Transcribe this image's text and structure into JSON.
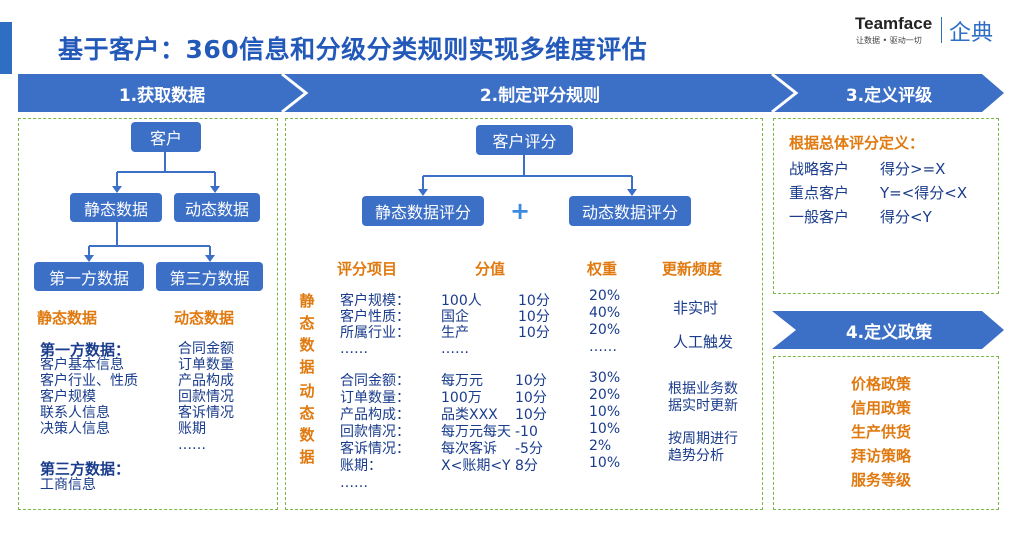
{
  "title": "基于客户：360信息和分级分类规则实现多维度评估",
  "logo": {
    "name": "Teamface",
    "tagline": "让数据 • 驱动一切",
    "name_cn": "企典"
  },
  "steps": [
    "1.获取数据",
    "2.制定评分规则",
    "3.定义评级",
    "4.定义政策"
  ],
  "acquire": {
    "root": "客户",
    "level2": [
      "静态数据",
      "动态数据"
    ],
    "level3": [
      "第一方数据",
      "第三方数据"
    ],
    "static_heading": "静态数据",
    "dynamic_heading": "动态数据",
    "first_party_heading": "第一方数据：",
    "first_party_items": [
      "客户基本信息",
      "客户行业、性质",
      "客户规模",
      "联系人信息",
      "决策人信息"
    ],
    "third_party_heading": "第三方数据：",
    "third_party_items": [
      "工商信息"
    ],
    "dynamic_items": [
      "合同金额",
      "订单数量",
      "产品构成",
      "回款情况",
      "客诉情况",
      "账期",
      "……"
    ]
  },
  "scoring": {
    "root": "客户评分",
    "static_score": "静态数据评分",
    "plus": "+",
    "dynamic_score": "动态数据评分",
    "headers": [
      "评分项目",
      "分值",
      "权重",
      "更新频度"
    ],
    "static_label": [
      "静",
      "态",
      "数",
      "据"
    ],
    "dynamic_label": [
      "动",
      "态",
      "数",
      "据"
    ],
    "static_rows": [
      {
        "item": "客户规模：",
        "value": "100人",
        "score": "10分",
        "weight": "20%"
      },
      {
        "item": "客户性质：",
        "value": "国企",
        "score": "10分",
        "weight": "40%"
      },
      {
        "item": "所属行业：",
        "value": "生产",
        "score": "10分",
        "weight": "20%"
      },
      {
        "item": "……",
        "value": "……",
        "score": "",
        "weight": "……"
      }
    ],
    "dynamic_rows": [
      {
        "item": "合同金额：",
        "value": "每万元",
        "score": "10分",
        "weight": "30%"
      },
      {
        "item": "订单数量：",
        "value": "100万",
        "score": "10分",
        "weight": "20%"
      },
      {
        "item": "产品构成：",
        "value": "品类XXX",
        "score": "10分",
        "weight": "10%"
      },
      {
        "item": "回款情况：",
        "value": "每万元每天",
        "score": "-10",
        "weight": "10%"
      },
      {
        "item": "客诉情况：",
        "value": "每次客诉",
        "score": "-5分",
        "weight": "2%"
      },
      {
        "item": "账期：",
        "value": "X<账期<Y",
        "score": "8分",
        "weight": "10%"
      },
      {
        "item": "……",
        "value": "",
        "score": "",
        "weight": ""
      }
    ],
    "freq_static": [
      "非实时",
      "人工触发"
    ],
    "freq_dynamic_1": [
      "根据业务数",
      "据实时更新"
    ],
    "freq_dynamic_2": [
      "按周期进行",
      "趋势分析"
    ]
  },
  "rating": {
    "heading": "根据总体评分定义：",
    "rows": [
      {
        "label": "战略客户",
        "rule": "得分>=X"
      },
      {
        "label": "重点客户",
        "rule": "Y=<得分<X"
      },
      {
        "label": "一般客户",
        "rule": "得分<Y"
      }
    ]
  },
  "policies": [
    "价格政策",
    "信用政策",
    "生产供货",
    "拜访策略",
    "服务等级"
  ],
  "colors": {
    "primary": "#3c6fc6",
    "accent": "#e07a10",
    "dash": "#7ab648",
    "text": "#1a3c8c"
  }
}
